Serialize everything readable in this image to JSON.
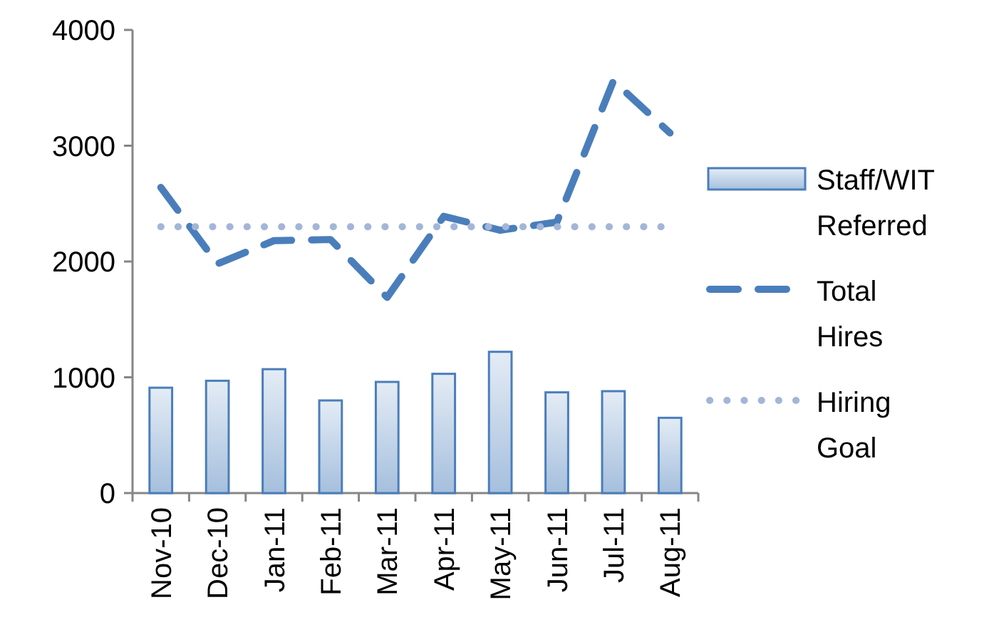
{
  "chart_data": {
    "type": "bar",
    "categories": [
      "Nov-10",
      "Dec-10",
      "Jan-11",
      "Feb-11",
      "Mar-11",
      "Apr-11",
      "May-11",
      "Jun-11",
      "Jul-11",
      "Aug-11"
    ],
    "series": [
      {
        "name": "Staff/WIT Referred",
        "color": "#4a7ebb",
        "values": [
          910,
          970,
          1070,
          800,
          960,
          1030,
          1220,
          870,
          880,
          650
        ]
      },
      {
        "name": "Total Hires",
        "type": "line",
        "line_style": "dashed",
        "color": "#4a7ebb",
        "values": [
          2640,
          1980,
          2180,
          2190,
          1690,
          2390,
          2270,
          2340,
          3560,
          3110
        ]
      },
      {
        "name": "Hiring Goal",
        "type": "line",
        "line_style": "dotted",
        "color": "#a3b6d8",
        "values": [
          2300,
          2300,
          2300,
          2300,
          2300,
          2300,
          2300,
          2300,
          2300,
          2300
        ]
      }
    ],
    "ylim": [
      0,
      4000
    ],
    "yticks": [
      0,
      1000,
      2000,
      3000,
      4000
    ],
    "grid": false,
    "legend": "right"
  }
}
